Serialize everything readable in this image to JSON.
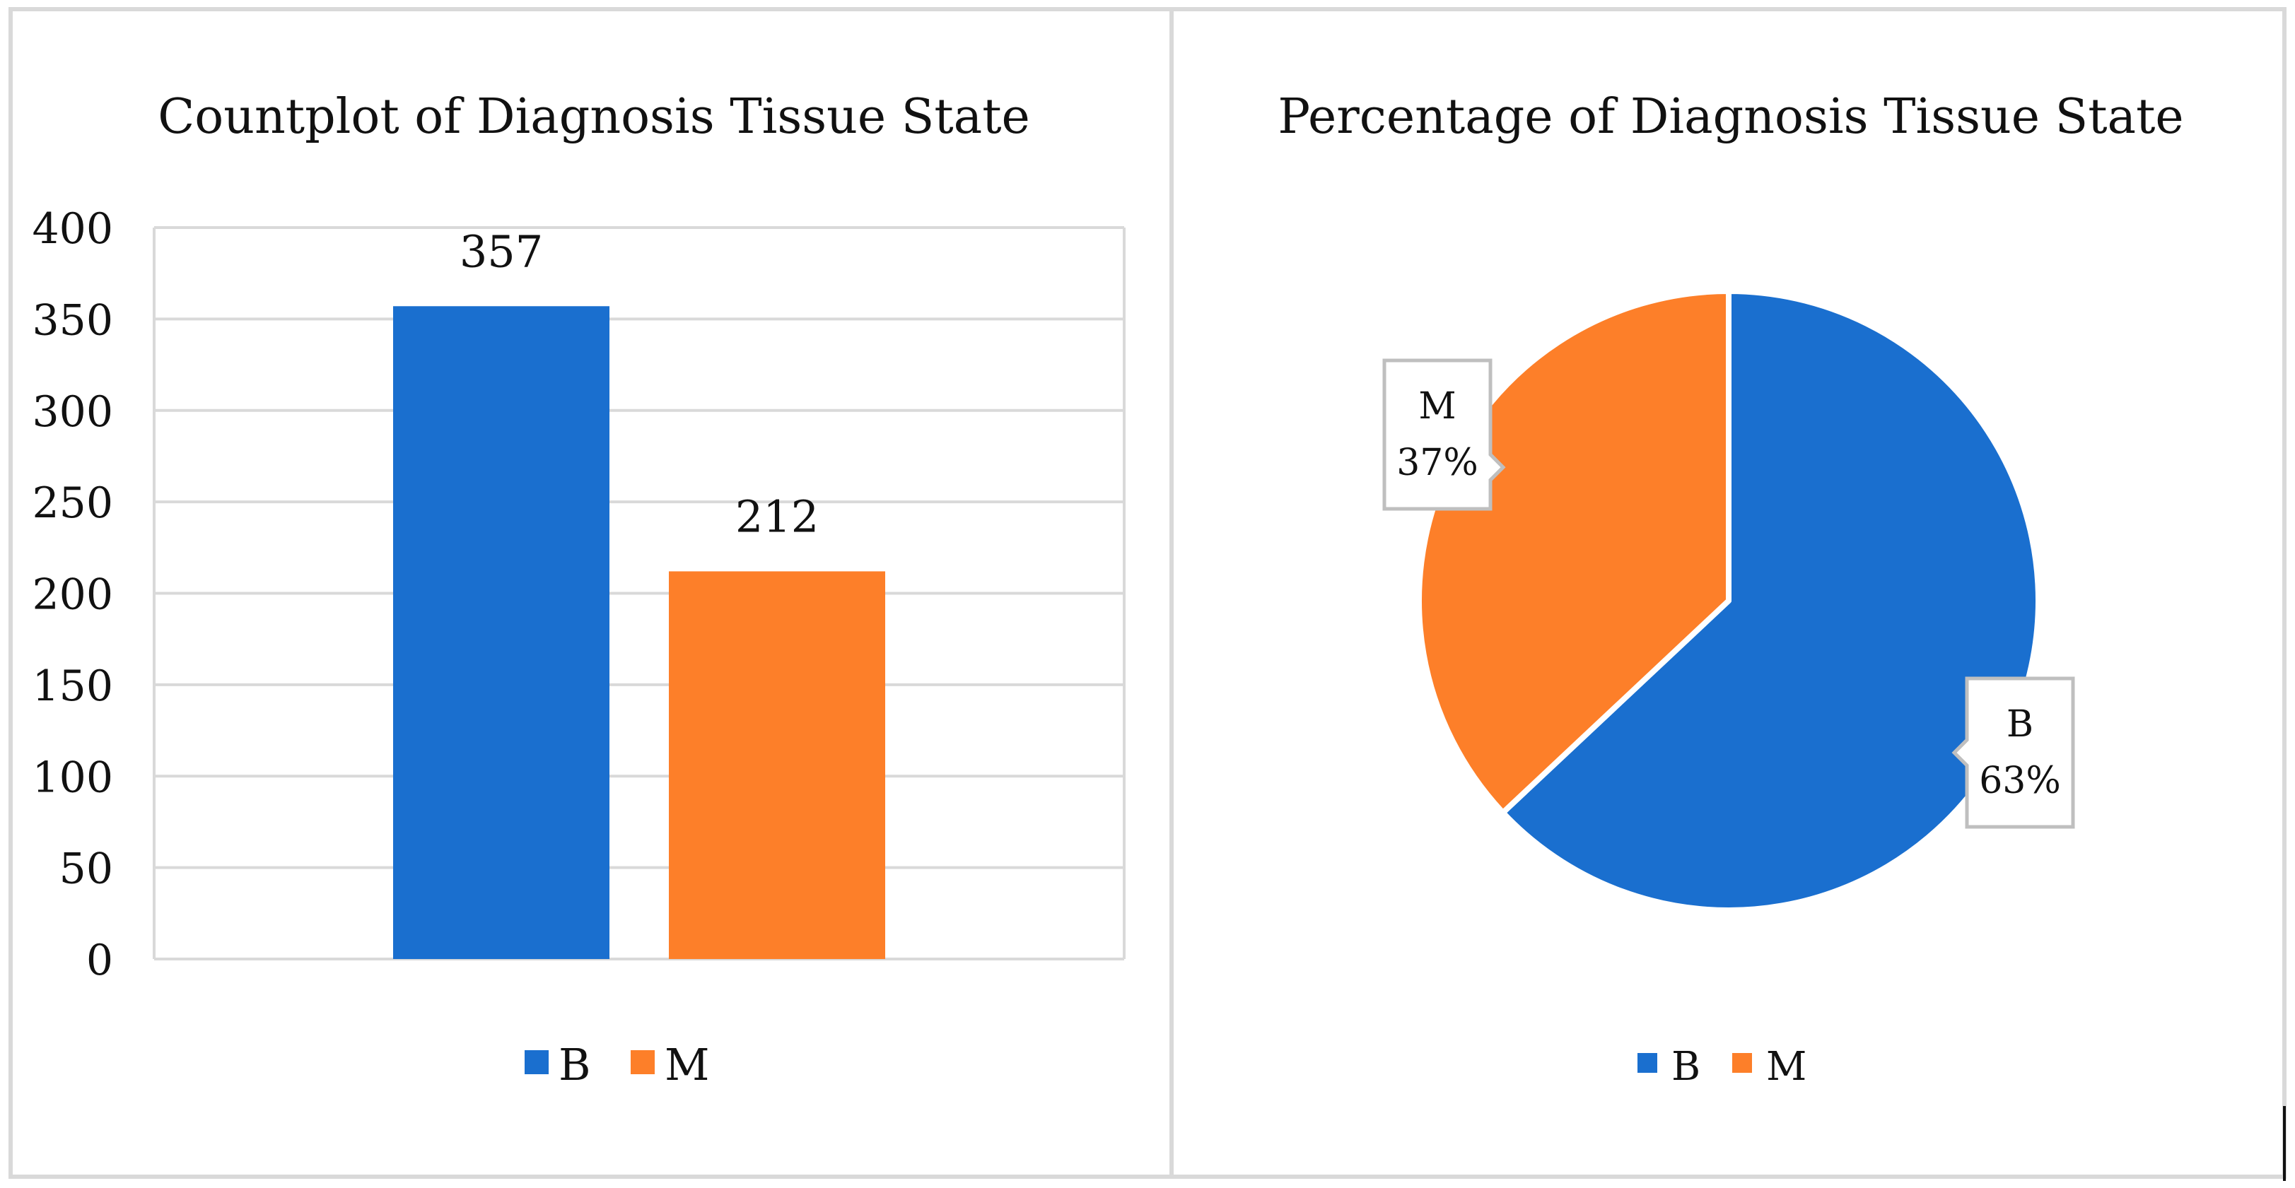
{
  "colors": {
    "B": "#1a6fcf",
    "M": "#fd7f29",
    "grid": "#d9d9d9",
    "text": "#111111",
    "callout_border": "#bfbfbf"
  },
  "chart_data": [
    {
      "type": "bar",
      "title": "Countplot of Diagnosis Tissue State",
      "categories": [
        "B",
        "M"
      ],
      "values": [
        357,
        212
      ],
      "data_labels": [
        "357",
        "212"
      ],
      "ylim": [
        0,
        400
      ],
      "yticks": [
        0,
        50,
        100,
        150,
        200,
        250,
        300,
        350,
        400
      ],
      "ytick_labels": [
        "0",
        "50",
        "100",
        "150",
        "200",
        "250",
        "300",
        "350",
        "400"
      ],
      "xlabel": "",
      "ylabel": "",
      "grid": true,
      "legend": {
        "position": "bottom",
        "entries": [
          "B",
          "M"
        ]
      }
    },
    {
      "type": "pie",
      "title": "Percentage of Diagnosis Tissue State",
      "categories": [
        "B",
        "M"
      ],
      "values": [
        63,
        37
      ],
      "data_labels": [
        {
          "name": "B",
          "pct": "63%"
        },
        {
          "name": "M",
          "pct": "37%"
        }
      ],
      "legend": {
        "position": "bottom",
        "entries": [
          "B",
          "M"
        ]
      }
    }
  ]
}
